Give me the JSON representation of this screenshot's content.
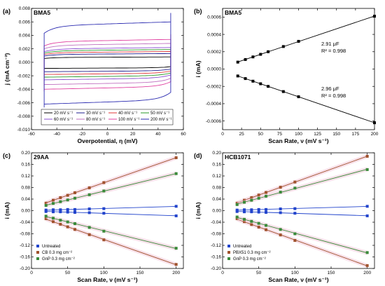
{
  "chart_data": [
    {
      "id": "a",
      "type": "line",
      "panel_label": "(a)",
      "title": "BMA5",
      "xlabel": "Overpotential, η (mV)",
      "ylabel": "j (mA cm⁻²)",
      "xlim": [
        -60,
        60
      ],
      "ylim": [
        -0.01,
        0.008
      ],
      "xticks": [
        -60,
        -40,
        -20,
        0,
        20,
        40,
        60
      ],
      "yticks": [
        -0.01,
        -0.008,
        -0.006,
        -0.004,
        -0.002,
        0.0,
        0.002,
        0.004,
        0.006,
        0.008
      ],
      "ytick_labels": [
        "-0.010",
        "-0.008",
        "-0.006",
        "-0.004",
        "-0.002",
        "0.000",
        "0.002",
        "0.004",
        "0.006",
        "0.008"
      ],
      "xrange_cv": [
        -50,
        50
      ],
      "grid": false,
      "legend_position": "bottom",
      "series": [
        {
          "name": "20 mV s⁻¹",
          "color": "#000000",
          "upper": 0.0008,
          "lower": -0.0009
        },
        {
          "name": "30 mV s⁻¹",
          "color": "#1f1f8f",
          "upper": 0.0013,
          "lower": -0.0014
        },
        {
          "name": "40 mV s⁻¹",
          "color": "#e03a3a",
          "upper": 0.0016,
          "lower": -0.0018
        },
        {
          "name": "50 mV s⁻¹",
          "color": "#2a9a2a",
          "upper": 0.0019,
          "lower": -0.0022
        },
        {
          "name": "60 mV s⁻¹",
          "color": "#8a4fd0",
          "upper": 0.0022,
          "lower": -0.0026
        },
        {
          "name": "80 mV s⁻¹",
          "color": "#c070c0",
          "upper": 0.0028,
          "lower": -0.0033
        },
        {
          "name": "100 mV s⁻¹",
          "color": "#e040a0",
          "upper": 0.0034,
          "lower": -0.004
        },
        {
          "name": "200 mV s⁻¹",
          "color": "#2a2ab0",
          "upper": 0.006,
          "lower": -0.0062
        }
      ]
    },
    {
      "id": "b",
      "type": "scatter",
      "panel_label": "(b)",
      "title": "BMA5",
      "xlabel": "Scan Rate, ν (mV s⁻¹)",
      "ylabel": "i (mA)",
      "xlim": [
        0,
        200
      ],
      "ylim": [
        -0.0007,
        0.0007
      ],
      "xticks": [
        0,
        25,
        50,
        75,
        100,
        125,
        150,
        175,
        200
      ],
      "yticks": [
        -0.0006,
        -0.0004,
        -0.0002,
        0.0,
        0.0002,
        0.0004,
        0.0006
      ],
      "ytick_labels": [
        "-0.0006",
        "-0.0004",
        "-0.0002",
        "0.0000",
        "0.0002",
        "0.0004",
        "0.0006"
      ],
      "x": [
        20,
        30,
        40,
        50,
        60,
        80,
        100,
        200
      ],
      "series": [
        {
          "name": "anodic",
          "color": "#000000",
          "values": [
            8e-05,
            0.00011,
            0.00014,
            0.00017,
            0.0002,
            0.00026,
            0.00032,
            0.00061
          ]
        },
        {
          "name": "cathodic",
          "color": "#000000",
          "values": [
            -8e-05,
            -0.00011,
            -0.00014,
            -0.00017,
            -0.0002,
            -0.00026,
            -0.00032,
            -0.00062
          ]
        }
      ],
      "annotations": [
        {
          "text": "2.91 μF",
          "r2": "R² = 0.998"
        },
        {
          "text": "2.96 μF",
          "r2": "R² = 0.998"
        }
      ]
    },
    {
      "id": "c",
      "type": "scatter",
      "panel_label": "(c)",
      "title": "29AA",
      "xlabel": "Scan Rate, ν (mV s⁻¹)",
      "ylabel": "i (mA)",
      "xlim": [
        0,
        210
      ],
      "ylim": [
        -0.2,
        0.2
      ],
      "xticks": [
        0,
        50,
        100,
        150,
        200
      ],
      "yticks": [
        -0.2,
        -0.16,
        -0.12,
        -0.08,
        -0.04,
        0.0,
        0.04,
        0.08,
        0.12,
        0.16,
        0.2
      ],
      "ytick_labels": [
        "-0.20",
        "-0.16",
        "-0.12",
        "-0.08",
        "-0.04",
        "0.00",
        "0.04",
        "0.08",
        "0.12",
        "0.16",
        "0.20"
      ],
      "x": [
        20,
        30,
        40,
        50,
        60,
        80,
        100,
        200
      ],
      "legend_position": "bottom-left",
      "series": [
        {
          "name": "Untreated",
          "color": "#2244cc",
          "values": [
            0.002,
            0.003,
            0.003,
            0.004,
            0.004,
            0.006,
            0.007,
            0.015
          ]
        },
        {
          "name": "Untreated_neg",
          "legend": false,
          "color": "#2244cc",
          "values": [
            -0.003,
            -0.004,
            -0.004,
            -0.005,
            -0.006,
            -0.007,
            -0.009,
            -0.018
          ]
        },
        {
          "name": "CB 0.3 mg cm⁻²",
          "color": "#a0522d",
          "values": [
            0.026,
            0.036,
            0.045,
            0.053,
            0.062,
            0.079,
            0.097,
            0.183
          ]
        },
        {
          "name": "CB_neg",
          "legend": false,
          "color": "#a0522d",
          "values": [
            -0.028,
            -0.038,
            -0.047,
            -0.056,
            -0.065,
            -0.083,
            -0.101,
            -0.186
          ]
        },
        {
          "name": "GnP 0.3 mg cm⁻²",
          "color": "#3a8a3a",
          "values": [
            0.018,
            0.025,
            0.031,
            0.037,
            0.043,
            0.055,
            0.068,
            0.128
          ]
        },
        {
          "name": "GnP_neg",
          "legend": false,
          "color": "#3a8a3a",
          "values": [
            -0.019,
            -0.026,
            -0.033,
            -0.039,
            -0.045,
            -0.058,
            -0.071,
            -0.13
          ]
        }
      ]
    },
    {
      "id": "d",
      "type": "scatter",
      "panel_label": "(d)",
      "title": "HCB1071",
      "xlabel": "Scan Rate, ν (mV s⁻¹)",
      "ylabel": "i (mA)",
      "xlim": [
        0,
        210
      ],
      "ylim": [
        -0.2,
        0.2
      ],
      "xticks": [
        0,
        50,
        100,
        150,
        200
      ],
      "yticks": [
        -0.2,
        -0.16,
        -0.12,
        -0.08,
        -0.04,
        0.0,
        0.04,
        0.08,
        0.12,
        0.16,
        0.2
      ],
      "ytick_labels": [
        "-0.20",
        "-0.16",
        "-0.12",
        "-0.08",
        "-0.04",
        "0.00",
        "0.04",
        "0.08",
        "0.12",
        "0.16",
        "0.20"
      ],
      "x": [
        20,
        30,
        40,
        50,
        60,
        80,
        100,
        200
      ],
      "legend_position": "bottom-left",
      "series": [
        {
          "name": "Untreated",
          "color": "#2244cc",
          "values": [
            0.002,
            0.003,
            0.003,
            0.004,
            0.004,
            0.006,
            0.007,
            0.015
          ]
        },
        {
          "name": "Untreated_neg",
          "legend": false,
          "color": "#2244cc",
          "values": [
            -0.003,
            -0.004,
            -0.004,
            -0.005,
            -0.006,
            -0.007,
            -0.009,
            -0.018
          ]
        },
        {
          "name": "PBX51 0.3 mg cm⁻²",
          "color": "#a0522d",
          "values": [
            0.026,
            0.036,
            0.045,
            0.054,
            0.063,
            0.081,
            0.099,
            0.188
          ]
        },
        {
          "name": "PBX_neg",
          "legend": false,
          "color": "#a0522d",
          "values": [
            -0.028,
            -0.038,
            -0.048,
            -0.057,
            -0.066,
            -0.084,
            -0.103,
            -0.19
          ]
        },
        {
          "name": "GnP 0.3 mg cm⁻²",
          "color": "#3a8a3a",
          "values": [
            0.021,
            0.029,
            0.036,
            0.043,
            0.05,
            0.064,
            0.078,
            0.142
          ]
        },
        {
          "name": "GnP_neg",
          "legend": false,
          "color": "#3a8a3a",
          "values": [
            -0.022,
            -0.03,
            -0.037,
            -0.044,
            -0.051,
            -0.065,
            -0.08,
            -0.145
          ]
        }
      ]
    }
  ]
}
